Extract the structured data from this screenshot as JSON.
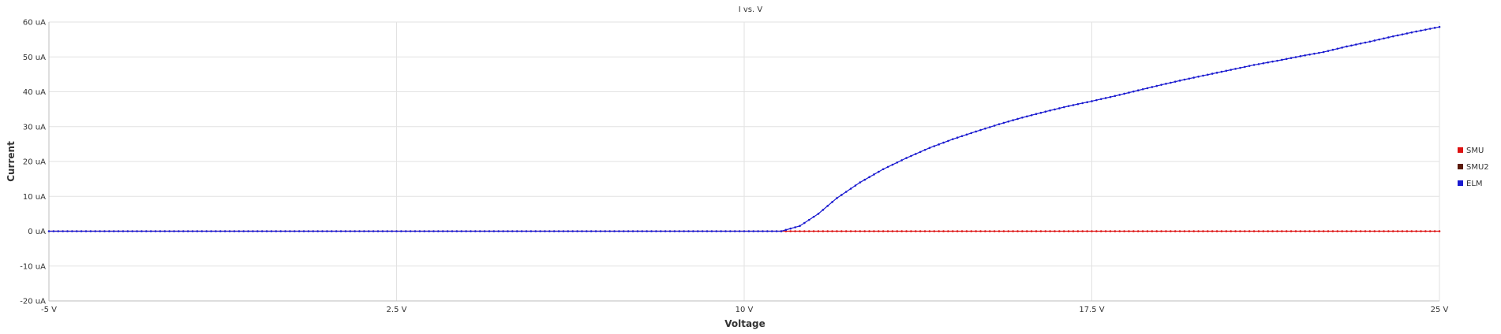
{
  "chart_data": {
    "type": "line",
    "title": "I vs. V",
    "xlabel": "Voltage",
    "ylabel": "Current",
    "xlim": [
      -5,
      25
    ],
    "ylim": [
      -20,
      60
    ],
    "x_ticks": [
      -5,
      2.5,
      10,
      17.5,
      25
    ],
    "x_tick_labels": [
      "-5 V",
      "2.5 V",
      "10 V",
      "17.5 V",
      "25 V"
    ],
    "y_ticks": [
      -20,
      -10,
      0,
      10,
      20,
      30,
      40,
      50,
      60
    ],
    "y_tick_labels": [
      "-20 uA",
      "-10 uA",
      "0 uA",
      "10 uA",
      "20 uA",
      "30 uA",
      "40 uA",
      "50 uA",
      "60 uA"
    ],
    "grid": true,
    "legend_position": "right",
    "series": [
      {
        "name": "SMU",
        "color": "#dd1111",
        "x": [
          -5,
          10.8,
          25
        ],
        "y": [
          0,
          0,
          0
        ]
      },
      {
        "name": "SMU2",
        "color": "#5a1a0a",
        "x": [],
        "y": []
      },
      {
        "name": "ELM",
        "color": "#1a1ad0",
        "x": [
          -5,
          10.8,
          11.2,
          11.6,
          12.0,
          12.5,
          13.0,
          13.5,
          14.0,
          14.5,
          15.0,
          15.5,
          16.0,
          16.5,
          17.0,
          17.5,
          18.0,
          18.5,
          19.0,
          19.5,
          20.0,
          20.5,
          21.0,
          21.5,
          22.0,
          22.5,
          23.0,
          23.5,
          24.0,
          24.5,
          25.0
        ],
        "y": [
          0,
          0,
          1.5,
          5,
          9.5,
          14,
          17.8,
          21,
          23.9,
          26.4,
          28.6,
          30.7,
          32.6,
          34.3,
          35.9,
          37.3,
          38.8,
          40.4,
          42,
          43.5,
          44.9,
          46.3,
          47.7,
          48.9,
          50.2,
          51.4,
          53,
          54.4,
          55.9,
          57.3,
          58.6
        ]
      }
    ]
  }
}
